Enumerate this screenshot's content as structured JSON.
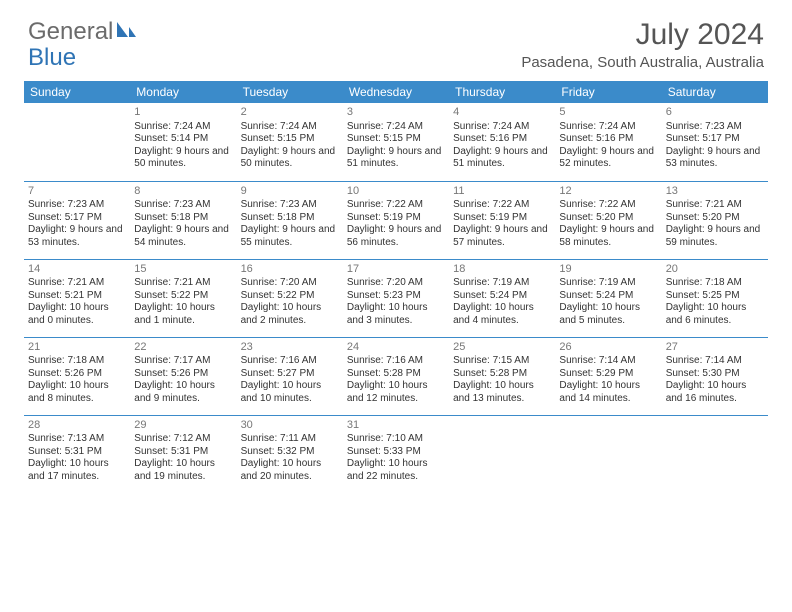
{
  "brand": {
    "word1": "General",
    "word2": "Blue"
  },
  "title": "July 2024",
  "location": "Pasadena, South Australia, Australia",
  "colors": {
    "header_bg": "#3b8bca",
    "header_text": "#ffffff",
    "brand_gray": "#6b6b6b",
    "brand_blue": "#2f74b5",
    "text": "#333333",
    "daynum": "#777777",
    "rule": "#3b8bca"
  },
  "weekdays": [
    "Sunday",
    "Monday",
    "Tuesday",
    "Wednesday",
    "Thursday",
    "Friday",
    "Saturday"
  ],
  "weeks": [
    [
      null,
      {
        "n": "1",
        "sr": "7:24 AM",
        "ss": "5:14 PM",
        "dl": "Daylight: 9 hours and 50 minutes."
      },
      {
        "n": "2",
        "sr": "7:24 AM",
        "ss": "5:15 PM",
        "dl": "Daylight: 9 hours and 50 minutes."
      },
      {
        "n": "3",
        "sr": "7:24 AM",
        "ss": "5:15 PM",
        "dl": "Daylight: 9 hours and 51 minutes."
      },
      {
        "n": "4",
        "sr": "7:24 AM",
        "ss": "5:16 PM",
        "dl": "Daylight: 9 hours and 51 minutes."
      },
      {
        "n": "5",
        "sr": "7:24 AM",
        "ss": "5:16 PM",
        "dl": "Daylight: 9 hours and 52 minutes."
      },
      {
        "n": "6",
        "sr": "7:23 AM",
        "ss": "5:17 PM",
        "dl": "Daylight: 9 hours and 53 minutes."
      }
    ],
    [
      {
        "n": "7",
        "sr": "7:23 AM",
        "ss": "5:17 PM",
        "dl": "Daylight: 9 hours and 53 minutes."
      },
      {
        "n": "8",
        "sr": "7:23 AM",
        "ss": "5:18 PM",
        "dl": "Daylight: 9 hours and 54 minutes."
      },
      {
        "n": "9",
        "sr": "7:23 AM",
        "ss": "5:18 PM",
        "dl": "Daylight: 9 hours and 55 minutes."
      },
      {
        "n": "10",
        "sr": "7:22 AM",
        "ss": "5:19 PM",
        "dl": "Daylight: 9 hours and 56 minutes."
      },
      {
        "n": "11",
        "sr": "7:22 AM",
        "ss": "5:19 PM",
        "dl": "Daylight: 9 hours and 57 minutes."
      },
      {
        "n": "12",
        "sr": "7:22 AM",
        "ss": "5:20 PM",
        "dl": "Daylight: 9 hours and 58 minutes."
      },
      {
        "n": "13",
        "sr": "7:21 AM",
        "ss": "5:20 PM",
        "dl": "Daylight: 9 hours and 59 minutes."
      }
    ],
    [
      {
        "n": "14",
        "sr": "7:21 AM",
        "ss": "5:21 PM",
        "dl": "Daylight: 10 hours and 0 minutes."
      },
      {
        "n": "15",
        "sr": "7:21 AM",
        "ss": "5:22 PM",
        "dl": "Daylight: 10 hours and 1 minute."
      },
      {
        "n": "16",
        "sr": "7:20 AM",
        "ss": "5:22 PM",
        "dl": "Daylight: 10 hours and 2 minutes."
      },
      {
        "n": "17",
        "sr": "7:20 AM",
        "ss": "5:23 PM",
        "dl": "Daylight: 10 hours and 3 minutes."
      },
      {
        "n": "18",
        "sr": "7:19 AM",
        "ss": "5:24 PM",
        "dl": "Daylight: 10 hours and 4 minutes."
      },
      {
        "n": "19",
        "sr": "7:19 AM",
        "ss": "5:24 PM",
        "dl": "Daylight: 10 hours and 5 minutes."
      },
      {
        "n": "20",
        "sr": "7:18 AM",
        "ss": "5:25 PM",
        "dl": "Daylight: 10 hours and 6 minutes."
      }
    ],
    [
      {
        "n": "21",
        "sr": "7:18 AM",
        "ss": "5:26 PM",
        "dl": "Daylight: 10 hours and 8 minutes."
      },
      {
        "n": "22",
        "sr": "7:17 AM",
        "ss": "5:26 PM",
        "dl": "Daylight: 10 hours and 9 minutes."
      },
      {
        "n": "23",
        "sr": "7:16 AM",
        "ss": "5:27 PM",
        "dl": "Daylight: 10 hours and 10 minutes."
      },
      {
        "n": "24",
        "sr": "7:16 AM",
        "ss": "5:28 PM",
        "dl": "Daylight: 10 hours and 12 minutes."
      },
      {
        "n": "25",
        "sr": "7:15 AM",
        "ss": "5:28 PM",
        "dl": "Daylight: 10 hours and 13 minutes."
      },
      {
        "n": "26",
        "sr": "7:14 AM",
        "ss": "5:29 PM",
        "dl": "Daylight: 10 hours and 14 minutes."
      },
      {
        "n": "27",
        "sr": "7:14 AM",
        "ss": "5:30 PM",
        "dl": "Daylight: 10 hours and 16 minutes."
      }
    ],
    [
      {
        "n": "28",
        "sr": "7:13 AM",
        "ss": "5:31 PM",
        "dl": "Daylight: 10 hours and 17 minutes."
      },
      {
        "n": "29",
        "sr": "7:12 AM",
        "ss": "5:31 PM",
        "dl": "Daylight: 10 hours and 19 minutes."
      },
      {
        "n": "30",
        "sr": "7:11 AM",
        "ss": "5:32 PM",
        "dl": "Daylight: 10 hours and 20 minutes."
      },
      {
        "n": "31",
        "sr": "7:10 AM",
        "ss": "5:33 PM",
        "dl": "Daylight: 10 hours and 22 minutes."
      },
      null,
      null,
      null
    ]
  ],
  "labels": {
    "sunrise": "Sunrise: ",
    "sunset": "Sunset: "
  }
}
